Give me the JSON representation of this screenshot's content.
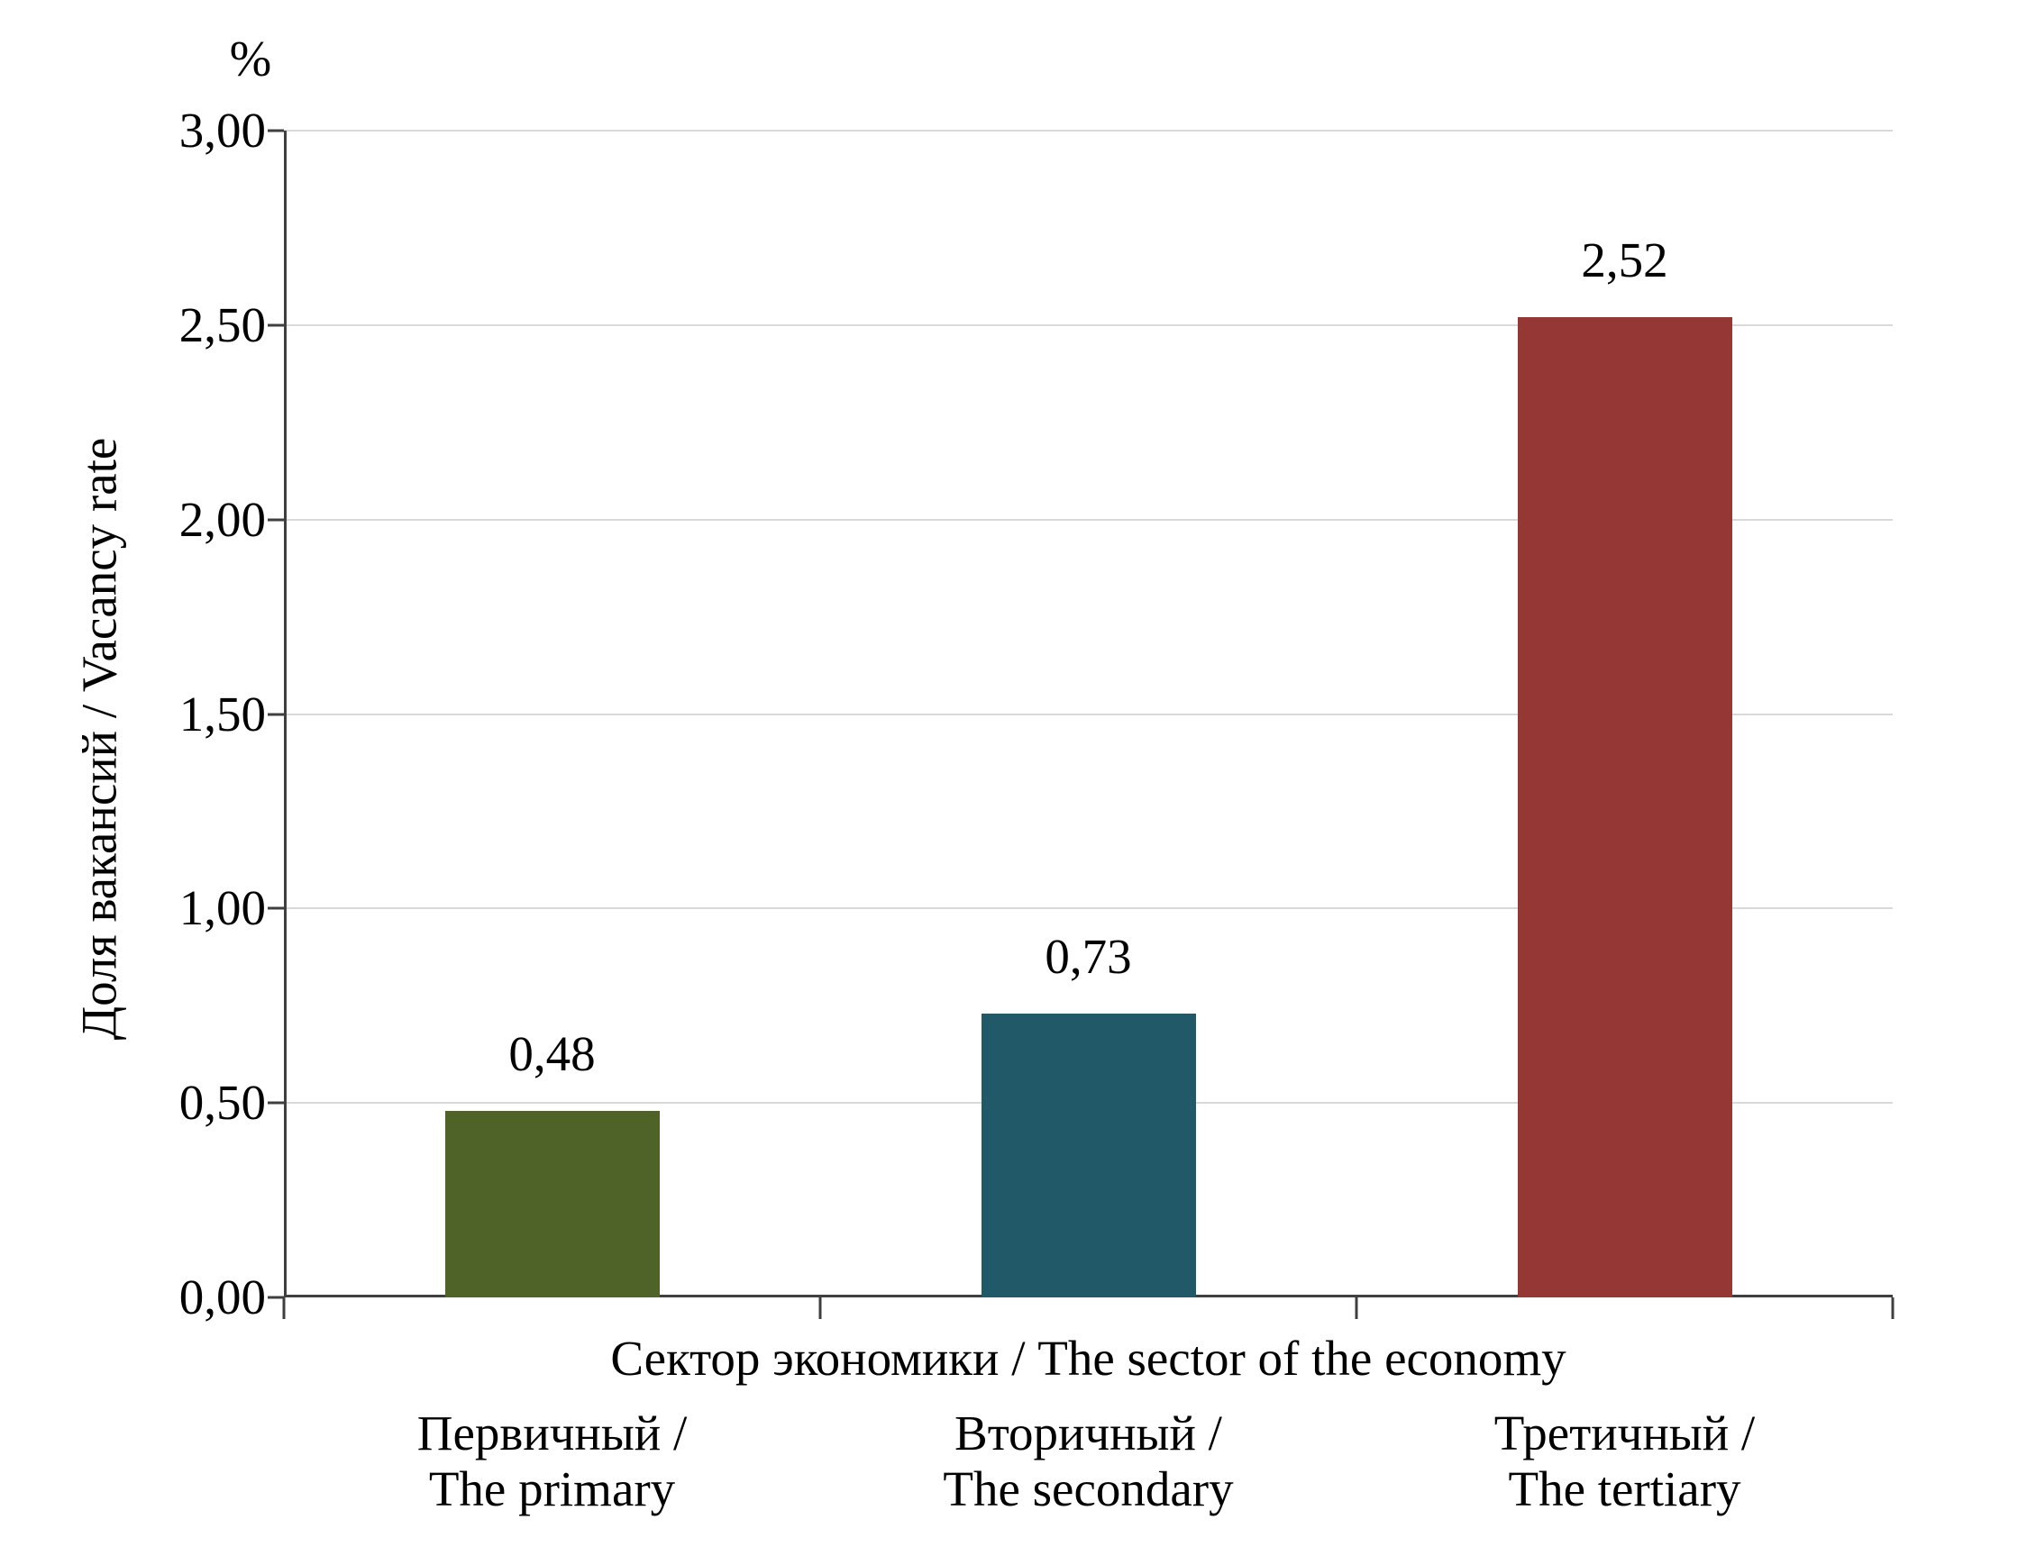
{
  "chart": {
    "percent_label": "%",
    "y_axis_title": "Доля вакансий / Vacancy rate",
    "x_axis_title": "Сектор экономики / The sector of the economy"
  },
  "chart_data": {
    "type": "bar",
    "title": "",
    "xlabel": "Сектор экономики / The sector of the economy",
    "ylabel": "Доля вакансий / Vacancy rate",
    "unit": "%",
    "ylim": [
      0,
      3
    ],
    "ytick_step": 0.5,
    "yticks": [
      {
        "value": 0.0,
        "label": "0,00"
      },
      {
        "value": 0.5,
        "label": "0,50"
      },
      {
        "value": 1.0,
        "label": "1,00"
      },
      {
        "value": 1.5,
        "label": "1,50"
      },
      {
        "value": 2.0,
        "label": "2,00"
      },
      {
        "value": 2.5,
        "label": "2,50"
      },
      {
        "value": 3.0,
        "label": "3,00"
      }
    ],
    "categories": [
      "Первичный / The primary",
      "Вторичный / The secondary",
      "Третичный / The tertiary"
    ],
    "category_line_pairs": [
      [
        "Первичный /",
        "The primary"
      ],
      [
        "Вторичный /",
        "The secondary"
      ],
      [
        "Третичный /",
        "The tertiary"
      ]
    ],
    "values": [
      0.48,
      0.73,
      2.52
    ],
    "value_labels": [
      "0,48",
      "0,73",
      "2,52"
    ],
    "bar_colors": [
      "#4F6228",
      "#215968",
      "#953735"
    ],
    "grid": "horizontal",
    "gridline_color": "#D9D9D9",
    "axis_color": "#3F3F3F",
    "legend": "none",
    "background": "#FFFFFF"
  }
}
